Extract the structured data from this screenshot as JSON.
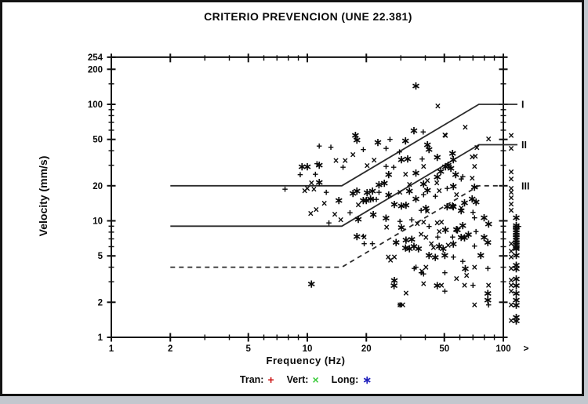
{
  "title": "CRITERIO PREVENCION (UNE 22.381)",
  "axes": {
    "x": {
      "label": "Frequency (Hz)",
      "scale": "log",
      "min": 1,
      "max": 100,
      "major_ticks": [
        1,
        2,
        5,
        10,
        20,
        50,
        100
      ],
      "minor_ticks": [
        3,
        4,
        6,
        7,
        8,
        9,
        30,
        40,
        60,
        70,
        80,
        90
      ],
      "overflow_label": ">"
    },
    "y": {
      "label": "Velocity (mm/s)",
      "scale": "log",
      "min": 1,
      "max": 254,
      "major_ticks": [
        254,
        200,
        100,
        50,
        20,
        10,
        5,
        2,
        1
      ],
      "minor_ticks": [
        3,
        4,
        6,
        7,
        8,
        9,
        30,
        40,
        60,
        70,
        80,
        90,
        150
      ]
    }
  },
  "legend": {
    "items": [
      {
        "name": "tran",
        "label": "Tran:",
        "symbol": "+",
        "color": "#cc1414"
      },
      {
        "name": "vert",
        "label": "Vert:",
        "symbol": "×",
        "color": "#3ecc3e"
      },
      {
        "name": "long",
        "label": "Long:",
        "symbol": "∗",
        "color": "#2121bd"
      }
    ]
  },
  "chart_data": {
    "type": "scatter",
    "title": "CRITERIO PREVENCION (UNE 22.381)",
    "xlabel": "Frequency (Hz)",
    "ylabel": "Velocity (mm/s)",
    "x_scale": "log",
    "y_scale": "log",
    "x_range": [
      1,
      100
    ],
    "y_range": [
      1,
      254
    ],
    "grid": false,
    "legend_position": "bottom",
    "series": [
      {
        "name": "Tran",
        "marker": "+",
        "color": "#cc1414",
        "points": [
          [
            11.5,
            44
          ],
          [
            13.2,
            43
          ],
          [
            15.2,
            29
          ],
          [
            11.2,
            31
          ],
          [
            9.2,
            25
          ],
          [
            11,
            25.2
          ],
          [
            7.7,
            18.7
          ],
          [
            12.5,
            17.6
          ],
          [
            12.9,
            9.6
          ],
          [
            16.5,
            11.8
          ],
          [
            21.7,
            15.3
          ],
          [
            19.3,
            41
          ],
          [
            25.2,
            42
          ],
          [
            26.4,
            50
          ],
          [
            29.5,
            39
          ],
          [
            39,
            58
          ],
          [
            38.5,
            34
          ],
          [
            25.2,
            29.4
          ],
          [
            27.6,
            29
          ],
          [
            19.5,
            6.4
          ],
          [
            21.5,
            6.4
          ],
          [
            19.3,
            7.4
          ],
          [
            23.2,
            17.6
          ],
          [
            39.2,
            16.8
          ],
          [
            45,
            16.3
          ],
          [
            22.5,
            15.3
          ],
          [
            38.1,
            12.3
          ],
          [
            29.7,
            9.9
          ],
          [
            34.1,
            10.2
          ],
          [
            41.8,
            9
          ],
          [
            46.3,
            7.3
          ],
          [
            55.1,
            7.3
          ],
          [
            51.7,
            19
          ],
          [
            61,
            22.9
          ],
          [
            70,
            11.9
          ],
          [
            71.3,
            10.6
          ],
          [
            72.6,
            8.1
          ],
          [
            71.3,
            6.1
          ],
          [
            55.6,
            4.9
          ],
          [
            62.1,
            4.5
          ],
          [
            83.4,
            3.9
          ],
          [
            35.8,
            4
          ],
          [
            39.2,
            3.5
          ],
          [
            50.3,
            3.6
          ],
          [
            50.3,
            2.5
          ],
          [
            70,
            2.8
          ],
          [
            84.1,
            1.9
          ],
          [
            35.1,
            3.9
          ],
          [
            38.1,
            3.6
          ],
          [
            29.7,
            1.9
          ],
          [
            62.1,
            24
          ]
        ]
      },
      {
        "name": "Vert",
        "marker": "x",
        "color": "#3ecc3e",
        "points": [
          [
            14,
            33
          ],
          [
            15.6,
            33
          ],
          [
            17.1,
            37
          ],
          [
            10.5,
            21.2
          ],
          [
            10,
            19
          ],
          [
            10.8,
            18.7
          ],
          [
            9.7,
            18.2
          ],
          [
            12.2,
            14.2
          ],
          [
            11.1,
            12.5
          ],
          [
            10.4,
            11.6
          ],
          [
            18.2,
            13.7
          ],
          [
            13.8,
            11.4
          ],
          [
            14.8,
            10.2
          ],
          [
            19.5,
            7.3
          ],
          [
            21.9,
            33.2
          ],
          [
            20.2,
            29.8
          ],
          [
            31.7,
            25.2
          ],
          [
            41,
            22.2
          ],
          [
            46.3,
            97
          ],
          [
            50.3,
            54.6
          ],
          [
            63.9,
            63.8
          ],
          [
            50.7,
            54
          ],
          [
            84.1,
            50.6
          ],
          [
            73.3,
            42.6
          ],
          [
            72,
            35.9
          ],
          [
            71.3,
            29.4
          ],
          [
            69.4,
            23.3
          ],
          [
            33.2,
            20.6
          ],
          [
            45.8,
            21.2
          ],
          [
            47.1,
            18.2
          ],
          [
            29.7,
            17.6
          ],
          [
            41,
            12.1
          ],
          [
            39.2,
            29.4
          ],
          [
            61,
            12.9
          ],
          [
            25.4,
            8.8
          ],
          [
            36.4,
            9.5
          ],
          [
            39.2,
            9.8
          ],
          [
            46,
            9.6
          ],
          [
            48.4,
            9.8
          ],
          [
            47.1,
            8.1
          ],
          [
            38.1,
            7.7
          ],
          [
            40.3,
            7.2
          ],
          [
            42.9,
            6.4
          ],
          [
            44,
            5.9
          ],
          [
            52.3,
            6.2
          ],
          [
            25.9,
            4.9
          ],
          [
            27.8,
            4.9
          ],
          [
            38.4,
            3.7
          ],
          [
            40.3,
            4
          ],
          [
            26.6,
            4.6
          ],
          [
            31.9,
            2.4
          ],
          [
            30.7,
            1.9
          ],
          [
            29.7,
            1.9
          ],
          [
            39.2,
            2.9
          ],
          [
            48.4,
            2.8
          ],
          [
            63.4,
            2.8
          ],
          [
            84.1,
            2.8
          ],
          [
            71.3,
            4
          ],
          [
            65,
            3.4
          ],
          [
            57.7,
            3.2
          ],
          [
            71.3,
            1.9
          ],
          [
            69.4,
            35.4
          ],
          [
            57.7,
            16.8
          ]
        ]
      },
      {
        "name": "Long",
        "marker": "*",
        "color": "#2121bd",
        "points": [
          [
            17.6,
            54.6
          ],
          [
            17.9,
            49.8
          ],
          [
            9.4,
            29.4
          ],
          [
            10,
            29.4
          ],
          [
            11.5,
            30.2
          ],
          [
            11.5,
            21.5
          ],
          [
            14.5,
            15.1
          ],
          [
            17.1,
            17.3
          ],
          [
            17.9,
            18.2
          ],
          [
            20,
            15.1
          ],
          [
            21.7,
            11.4
          ],
          [
            18.2,
            10.4
          ],
          [
            17.9,
            7.4
          ],
          [
            10.5,
            2.9
          ],
          [
            35.8,
            145
          ],
          [
            35,
            60
          ],
          [
            31.7,
            49
          ],
          [
            22.9,
            47.5
          ],
          [
            41,
            45.4
          ],
          [
            41.8,
            41.3
          ],
          [
            30.2,
            33.8
          ],
          [
            32.5,
            34.3
          ],
          [
            46,
            35.4
          ],
          [
            50.7,
            29.4
          ],
          [
            54,
            28.5
          ],
          [
            26,
            25.2
          ],
          [
            35.8,
            25.9
          ],
          [
            46,
            24
          ],
          [
            23.2,
            20.6
          ],
          [
            24.7,
            21.2
          ],
          [
            39.2,
            20.9
          ],
          [
            41,
            18.4
          ],
          [
            20.2,
            17.6
          ],
          [
            21.5,
            18.2
          ],
          [
            26,
            16.8
          ],
          [
            33.2,
            18.2
          ],
          [
            19.3,
            15.1
          ],
          [
            21,
            15.6
          ],
          [
            27.8,
            14
          ],
          [
            30.2,
            13.5
          ],
          [
            31.9,
            13.7
          ],
          [
            35.8,
            15.6
          ],
          [
            40.3,
            12.9
          ],
          [
            51.7,
            13.3
          ],
          [
            55.1,
            13.5
          ],
          [
            25.2,
            10.6
          ],
          [
            30.2,
            8.8
          ],
          [
            31.9,
            6.9
          ],
          [
            34.1,
            7
          ],
          [
            28.4,
            6.6
          ],
          [
            31.7,
            5.9
          ],
          [
            33.2,
            5.8
          ],
          [
            35,
            6.1
          ],
          [
            36.9,
            5.8
          ],
          [
            47.1,
            6.1
          ],
          [
            49.3,
            5.8
          ],
          [
            55.6,
            6.4
          ],
          [
            61,
            7.3
          ],
          [
            58.3,
            8.4
          ],
          [
            50.7,
            8.4
          ],
          [
            41.8,
            5.1
          ],
          [
            45,
            4.9
          ],
          [
            50.3,
            5.1
          ],
          [
            27.8,
            3.1
          ],
          [
            27.7,
            2.8
          ],
          [
            46,
            2.8
          ],
          [
            83.4,
            2.4
          ],
          [
            55.6,
            20
          ],
          [
            71.3,
            19.7
          ],
          [
            72.6,
            14.6
          ],
          [
            69.4,
            15.6
          ],
          [
            63.4,
            14.4
          ],
          [
            55.6,
            13.3
          ],
          [
            61,
            12.3
          ],
          [
            79.8,
            10.7
          ],
          [
            84.1,
            9.5
          ],
          [
            62.1,
            9.2
          ],
          [
            66.4,
            7.7
          ],
          [
            57.7,
            8.5
          ],
          [
            63.4,
            7.2
          ],
          [
            79.8,
            7.3
          ],
          [
            83.4,
            6.6
          ],
          [
            76.8,
            5.1
          ],
          [
            64,
            3.9
          ],
          [
            55.1,
            38.2
          ],
          [
            55.6,
            33.8
          ],
          [
            52.3,
            30.2
          ],
          [
            57.1,
            25.2
          ],
          [
            48,
            26.8
          ],
          [
            83.4,
            2.1
          ]
        ]
      }
    ],
    "overflow_points_beyond_100hz": {
      "label": ">",
      "Tran": [
        9
      ],
      "Vert": [
        54,
        42,
        26.4,
        22.9,
        19,
        17.6,
        15.8,
        14,
        12.3,
        6.4,
        5.5,
        4.9,
        3.9,
        3.1,
        2.8,
        2.5,
        1.9,
        1.4
      ],
      "Long": [
        10.7,
        9.2,
        8.8,
        8.4,
        8,
        7.6,
        7.3,
        6.9,
        6.6,
        6.3,
        6,
        5.8,
        5.1,
        4.2,
        3.9,
        3.2,
        2.8,
        2.4,
        2.1,
        1.9,
        1.5,
        1.4
      ]
    },
    "criterion_lines": [
      {
        "label": "I",
        "style": "solid",
        "points": [
          [
            2,
            20
          ],
          [
            15,
            20
          ],
          [
            75,
            100
          ],
          [
            118,
            100
          ]
        ]
      },
      {
        "label": "II",
        "style": "solid",
        "points": [
          [
            2,
            9
          ],
          [
            15,
            9
          ],
          [
            75,
            45
          ],
          [
            118,
            45
          ]
        ]
      },
      {
        "label": "III",
        "style": "dashed",
        "points": [
          [
            2,
            4
          ],
          [
            15,
            4
          ],
          [
            75,
            20
          ],
          [
            100,
            20
          ]
        ]
      }
    ]
  },
  "colors": {
    "tran": "#cc1414",
    "vert": "#3ecc3e",
    "long": "#2121bd",
    "line": "#2b2b2b",
    "axis": "#111111",
    "frame": "#141414",
    "page_edge": "#c3c7ce"
  }
}
